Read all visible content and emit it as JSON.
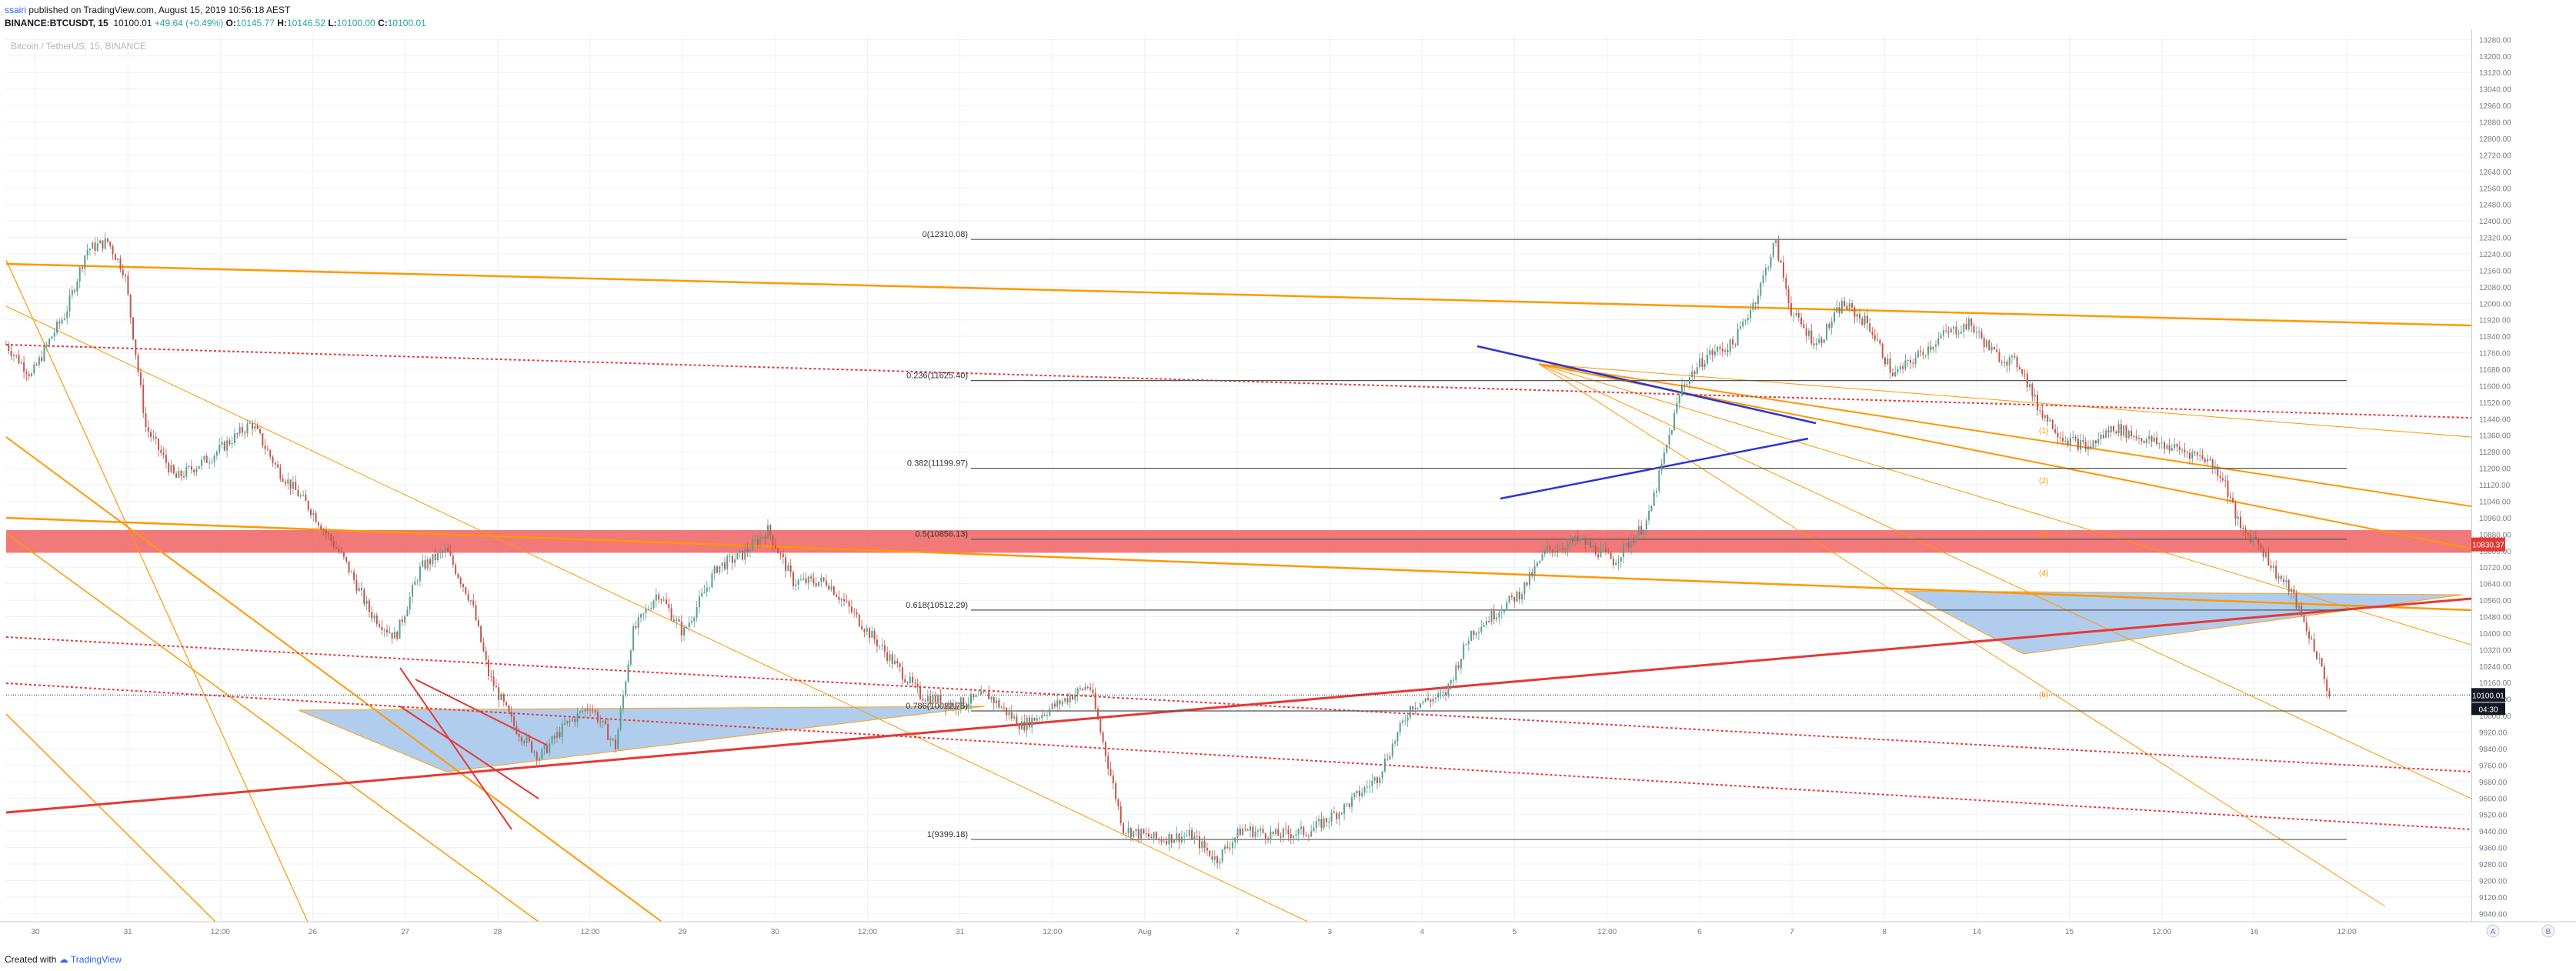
{
  "header": {
    "user": "ssairi",
    "published_text": "published on TradingView.com, August 15, 2019 10:56:18 AEST",
    "symbol_line": "BINANCE:BTCUSDT, 15",
    "last": "10100.01",
    "change": "+49.64 (+0.49%)",
    "open_label": "O:",
    "open": "10145.77",
    "high_label": "H:",
    "high": "10146.52",
    "low_label": "L:",
    "low": "10100.00",
    "close_label": "C:",
    "close": "10100.01"
  },
  "watermark": "Bitcoin / TetherUS, 15, BINANCE",
  "footer": {
    "created_with": "Created with",
    "brand": "TradingView"
  },
  "colors": {
    "background": "#ffffff",
    "grid": "#eef0f3",
    "fib_line": "#555555",
    "orange": "#ff9800",
    "red": "#e53935",
    "blue_line": "#2e33d6",
    "triangle_fill": "#a8c8ec",
    "zone_fill": "#ef6262",
    "candle_up": "#5b9e8f",
    "candle_down": "#c0584c"
  },
  "chart_data": {
    "type": "candlestick",
    "title": "Bitcoin / TetherUS, 15, BINANCE",
    "interval": "15",
    "ylim": [
      9000,
      13300
    ],
    "x_ticks": [
      "30",
      "31",
      "12:00",
      "26",
      "27",
      "28",
      "12:00",
      "29",
      "30",
      "12:00",
      "31",
      "12:00",
      "Aug",
      "2",
      "3",
      "4",
      "5",
      "12:00",
      "6",
      "7",
      "8",
      "14",
      "15",
      "12:00",
      "16",
      "12:00"
    ],
    "price_ticks": [
      "13280.00",
      "13200.00",
      "13120.00",
      "13040.00",
      "12960.00",
      "12880.00",
      "12800.00",
      "12720.00",
      "12640.00",
      "12560.00",
      "12480.00",
      "12400.00",
      "12320.00",
      "12240.00",
      "12160.00",
      "12080.00",
      "12000.00",
      "11920.00",
      "11840.00",
      "11760.00",
      "11680.00",
      "11600.00",
      "11520.00",
      "11440.00",
      "11360.00",
      "11280.00",
      "11200.00",
      "11120.00",
      "11040.00",
      "10960.00",
      "10880.00",
      "10800.00",
      "10720.00",
      "10640.00",
      "10560.00",
      "10480.00",
      "10400.00",
      "10320.00",
      "10240.00",
      "10160.00",
      "10080.00",
      "10000.00",
      "9920.00",
      "9840.00",
      "9760.00",
      "9680.00",
      "9600.00",
      "9520.00",
      "9440.00",
      "9360.00",
      "9280.00",
      "9200.00",
      "9120.00",
      "9040.00"
    ],
    "last_price_label": "10100.01",
    "countdown_label": "04:30",
    "zone_price_label": "10830.37",
    "fib_levels": [
      {
        "label": "0(12310.08)",
        "value": 12310.08
      },
      {
        "label": "0.236(11625.40)",
        "value": 11625.4
      },
      {
        "label": "0.382(11199.97)",
        "value": 11199.97
      },
      {
        "label": "0.5(10856.13)",
        "value": 10856.13
      },
      {
        "label": "0.618(10512.29)",
        "value": 10512.29
      },
      {
        "label": "0.786(10022.75)",
        "value": 10022.75
      },
      {
        "label": "1(9399.18)",
        "value": 9399.18
      }
    ],
    "resistance_zone": [
      10790,
      10900
    ],
    "wave_labels": [
      "(1)",
      "(2)",
      "(3)",
      "(4)",
      "(5)"
    ],
    "price_path": [
      [
        0,
        11800
      ],
      [
        30,
        11650
      ],
      [
        55,
        11850
      ],
      [
        70,
        11950
      ],
      [
        95,
        12260
      ],
      [
        120,
        12300
      ],
      [
        140,
        12150
      ],
      [
        165,
        11400
      ],
      [
        200,
        11150
      ],
      [
        240,
        11250
      ],
      [
        290,
        11420
      ],
      [
        320,
        11200
      ],
      [
        360,
        11000
      ],
      [
        400,
        10750
      ],
      [
        430,
        10500
      ],
      [
        460,
        10380
      ],
      [
        490,
        10720
      ],
      [
        520,
        10800
      ],
      [
        550,
        10550
      ],
      [
        570,
        10200
      ],
      [
        600,
        9950
      ],
      [
        630,
        9800
      ],
      [
        660,
        9950
      ],
      [
        690,
        10050
      ],
      [
        720,
        9850
      ],
      [
        740,
        10400
      ],
      [
        770,
        10600
      ],
      [
        800,
        10400
      ],
      [
        840,
        10720
      ],
      [
        870,
        10780
      ],
      [
        900,
        10900
      ],
      [
        930,
        10650
      ],
      [
        970,
        10650
      ],
      [
        1010,
        10450
      ],
      [
        1050,
        10250
      ],
      [
        1080,
        10100
      ],
      [
        1120,
        10050
      ],
      [
        1160,
        10100
      ],
      [
        1200,
        9950
      ],
      [
        1240,
        10050
      ],
      [
        1280,
        10150
      ],
      [
        1320,
        9450
      ],
      [
        1360,
        9400
      ],
      [
        1400,
        9420
      ],
      [
        1430,
        9300
      ],
      [
        1460,
        9450
      ],
      [
        1500,
        9420
      ],
      [
        1540,
        9440
      ],
      [
        1580,
        9550
      ],
      [
        1620,
        9700
      ],
      [
        1660,
        10050
      ],
      [
        1700,
        10100
      ],
      [
        1730,
        10400
      ],
      [
        1760,
        10500
      ],
      [
        1790,
        10600
      ],
      [
        1820,
        10800
      ],
      [
        1860,
        10850
      ],
      [
        1900,
        10750
      ],
      [
        1940,
        10950
      ],
      [
        1980,
        11600
      ],
      [
        2010,
        11750
      ],
      [
        2040,
        11800
      ],
      [
        2070,
        12050
      ],
      [
        2090,
        12300
      ],
      [
        2110,
        11950
      ],
      [
        2140,
        11800
      ],
      [
        2170,
        12000
      ],
      [
        2200,
        11900
      ],
      [
        2230,
        11650
      ],
      [
        2260,
        11750
      ],
      [
        2290,
        11850
      ],
      [
        2320,
        11900
      ],
      [
        2350,
        11750
      ],
      [
        2380,
        11700
      ],
      [
        2400,
        11500
      ],
      [
        2430,
        11350
      ],
      [
        2460,
        11300
      ],
      [
        2490,
        11400
      ],
      [
        2520,
        11350
      ],
      [
        2560,
        11300
      ],
      [
        2600,
        11250
      ],
      [
        2620,
        11150
      ],
      [
        2640,
        10900
      ],
      [
        2660,
        10850
      ],
      [
        2680,
        10700
      ],
      [
        2700,
        10600
      ],
      [
        2715,
        10450
      ],
      [
        2730,
        10300
      ],
      [
        2745,
        10100
      ]
    ]
  }
}
